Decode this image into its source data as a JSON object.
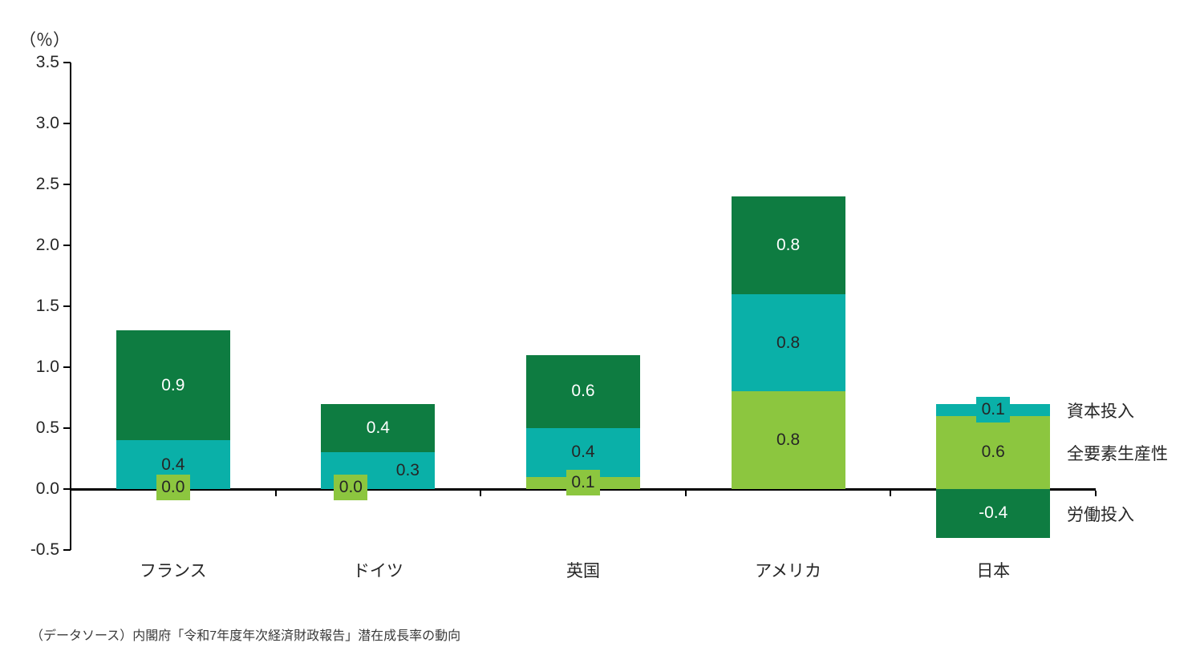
{
  "chart_data": {
    "type": "bar",
    "stacked": true,
    "title": "",
    "unit_label": "（％）",
    "categories": [
      "フランス",
      "ドイツ",
      "英国",
      "アメリカ",
      "日本"
    ],
    "series": [
      {
        "name": "全要素生産性",
        "color": "#8CC63F",
        "label_color": "#262626",
        "values": [
          0.0,
          0.0,
          0.1,
          0.8,
          0.6
        ]
      },
      {
        "name": "資本投入",
        "color": "#0AB0A8",
        "label_color": "#262626",
        "values": [
          0.4,
          0.3,
          0.4,
          0.8,
          0.1
        ]
      },
      {
        "name": "労働投入",
        "color": "#0E7C41",
        "label_color": "#FFFFFF",
        "values": [
          0.9,
          0.4,
          0.6,
          0.8,
          -0.4
        ]
      }
    ],
    "ylim": [
      -0.5,
      3.5
    ],
    "ytick_step": 0.5,
    "yticks": [
      "3.5",
      "3.0",
      "2.5",
      "2.0",
      "1.5",
      "1.0",
      "0.5",
      "0.0",
      "-0.5"
    ],
    "grid": false,
    "legend_position": "right-of-last-bar",
    "axis_color": "#000000",
    "small_value_boxed_threshold": 0.1,
    "label_offsets": [
      {
        "series": 0,
        "category": 1,
        "dx": -34
      },
      {
        "series": 1,
        "category": 1,
        "dx": 37
      }
    ]
  },
  "source_note": "（データソース）内閣府「令和7年度年次経済財政報告」潜在成長率の動向"
}
